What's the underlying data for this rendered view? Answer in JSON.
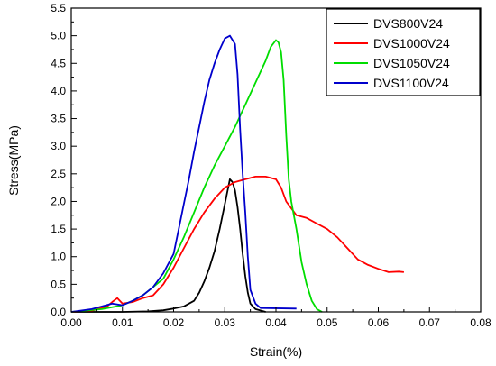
{
  "chart_data": {
    "type": "line",
    "title": "",
    "xlabel": "Strain(%)",
    "ylabel": "Stress(MPa)",
    "xlim": [
      0.0,
      0.08
    ],
    "ylim": [
      0.0,
      5.5
    ],
    "xticks": [
      "0.00",
      "0.01",
      "0.02",
      "0.03",
      "0.04",
      "0.05",
      "0.06",
      "0.07",
      "0.08"
    ],
    "yticks": [
      "0.0",
      "0.5",
      "1.0",
      "1.5",
      "2.0",
      "2.5",
      "3.0",
      "3.5",
      "4.0",
      "4.5",
      "5.0",
      "5.5"
    ],
    "legend_position": "top-right",
    "grid": false,
    "series": [
      {
        "name": "DVS800V24",
        "color": "#000000",
        "points": [
          [
            0.0,
            0.0
          ],
          [
            0.01,
            0.0
          ],
          [
            0.015,
            0.01
          ],
          [
            0.018,
            0.03
          ],
          [
            0.02,
            0.06
          ],
          [
            0.022,
            0.1
          ],
          [
            0.024,
            0.2
          ],
          [
            0.025,
            0.35
          ],
          [
            0.026,
            0.55
          ],
          [
            0.027,
            0.8
          ],
          [
            0.028,
            1.1
          ],
          [
            0.029,
            1.5
          ],
          [
            0.03,
            1.95
          ],
          [
            0.031,
            2.4
          ],
          [
            0.0315,
            2.35
          ],
          [
            0.032,
            2.2
          ],
          [
            0.0325,
            1.9
          ],
          [
            0.033,
            1.5
          ],
          [
            0.0335,
            1.05
          ],
          [
            0.034,
            0.65
          ],
          [
            0.0345,
            0.35
          ],
          [
            0.035,
            0.15
          ],
          [
            0.036,
            0.05
          ],
          [
            0.038,
            0.0
          ]
        ]
      },
      {
        "name": "DVS1000V24",
        "color": "#ff0000",
        "points": [
          [
            0.0,
            0.0
          ],
          [
            0.004,
            0.02
          ],
          [
            0.007,
            0.1
          ],
          [
            0.008,
            0.18
          ],
          [
            0.009,
            0.25
          ],
          [
            0.01,
            0.15
          ],
          [
            0.012,
            0.18
          ],
          [
            0.014,
            0.25
          ],
          [
            0.016,
            0.3
          ],
          [
            0.018,
            0.5
          ],
          [
            0.02,
            0.8
          ],
          [
            0.022,
            1.15
          ],
          [
            0.024,
            1.5
          ],
          [
            0.026,
            1.8
          ],
          [
            0.028,
            2.05
          ],
          [
            0.03,
            2.25
          ],
          [
            0.032,
            2.35
          ],
          [
            0.034,
            2.4
          ],
          [
            0.036,
            2.45
          ],
          [
            0.038,
            2.45
          ],
          [
            0.04,
            2.4
          ],
          [
            0.041,
            2.25
          ],
          [
            0.042,
            2.0
          ],
          [
            0.044,
            1.75
          ],
          [
            0.046,
            1.7
          ],
          [
            0.048,
            1.6
          ],
          [
            0.05,
            1.5
          ],
          [
            0.052,
            1.35
          ],
          [
            0.054,
            1.15
          ],
          [
            0.056,
            0.95
          ],
          [
            0.058,
            0.85
          ],
          [
            0.06,
            0.78
          ],
          [
            0.062,
            0.72
          ],
          [
            0.064,
            0.73
          ],
          [
            0.065,
            0.72
          ]
        ]
      },
      {
        "name": "DVS1050V24",
        "color": "#00dd00",
        "points": [
          [
            0.0,
            0.0
          ],
          [
            0.006,
            0.05
          ],
          [
            0.01,
            0.12
          ],
          [
            0.012,
            0.2
          ],
          [
            0.014,
            0.3
          ],
          [
            0.016,
            0.45
          ],
          [
            0.018,
            0.6
          ],
          [
            0.02,
            0.95
          ],
          [
            0.022,
            1.35
          ],
          [
            0.024,
            1.8
          ],
          [
            0.026,
            2.25
          ],
          [
            0.028,
            2.65
          ],
          [
            0.03,
            3.0
          ],
          [
            0.032,
            3.35
          ],
          [
            0.034,
            3.75
          ],
          [
            0.036,
            4.15
          ],
          [
            0.038,
            4.55
          ],
          [
            0.039,
            4.8
          ],
          [
            0.04,
            4.92
          ],
          [
            0.0405,
            4.88
          ],
          [
            0.041,
            4.7
          ],
          [
            0.0415,
            4.2
          ],
          [
            0.042,
            3.2
          ],
          [
            0.0425,
            2.4
          ],
          [
            0.043,
            2.0
          ],
          [
            0.044,
            1.5
          ],
          [
            0.045,
            0.9
          ],
          [
            0.046,
            0.5
          ],
          [
            0.047,
            0.2
          ],
          [
            0.048,
            0.05
          ],
          [
            0.049,
            0.0
          ]
        ]
      },
      {
        "name": "DVS1100V24",
        "color": "#0000cc",
        "points": [
          [
            0.0,
            0.0
          ],
          [
            0.004,
            0.05
          ],
          [
            0.006,
            0.1
          ],
          [
            0.008,
            0.15
          ],
          [
            0.01,
            0.12
          ],
          [
            0.012,
            0.2
          ],
          [
            0.014,
            0.3
          ],
          [
            0.016,
            0.45
          ],
          [
            0.018,
            0.7
          ],
          [
            0.02,
            1.05
          ],
          [
            0.021,
            1.5
          ],
          [
            0.022,
            1.95
          ],
          [
            0.023,
            2.4
          ],
          [
            0.024,
            2.9
          ],
          [
            0.025,
            3.35
          ],
          [
            0.026,
            3.8
          ],
          [
            0.027,
            4.2
          ],
          [
            0.028,
            4.5
          ],
          [
            0.029,
            4.75
          ],
          [
            0.03,
            4.95
          ],
          [
            0.031,
            5.0
          ],
          [
            0.032,
            4.85
          ],
          [
            0.0325,
            4.3
          ],
          [
            0.033,
            3.3
          ],
          [
            0.0335,
            2.5
          ],
          [
            0.034,
            1.8
          ],
          [
            0.0345,
            1.0
          ],
          [
            0.035,
            0.4
          ],
          [
            0.036,
            0.15
          ],
          [
            0.037,
            0.07
          ],
          [
            0.044,
            0.06
          ]
        ]
      }
    ]
  }
}
